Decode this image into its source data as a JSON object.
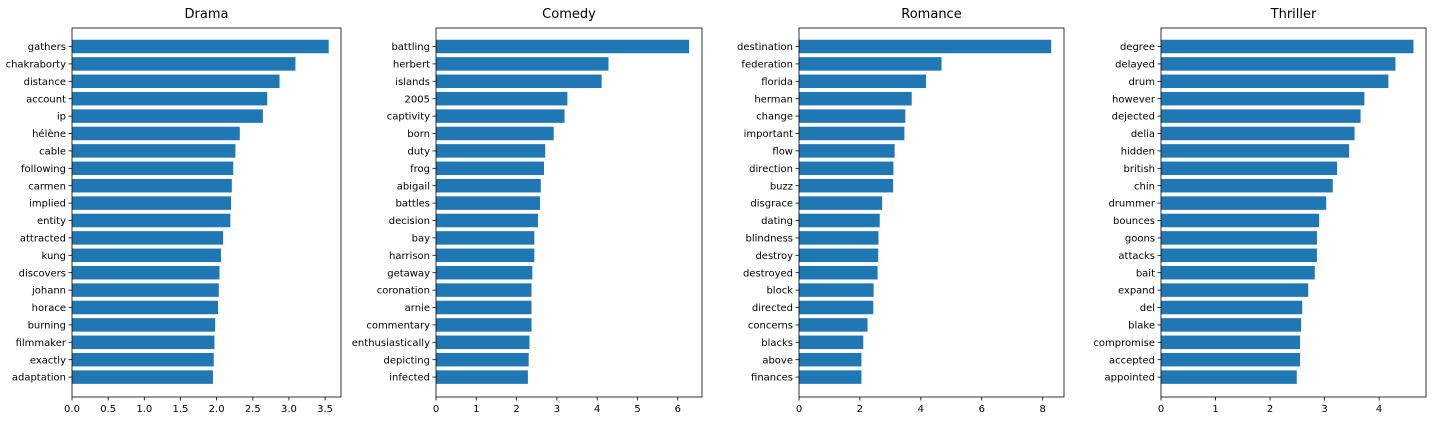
{
  "chart_data": [
    {
      "type": "bar",
      "orientation": "horizontal",
      "title": "Drama",
      "bar_color": "#1f77b4",
      "xlim": [
        0,
        3.72
      ],
      "xticks": [
        "0.0",
        "0.5",
        "1.0",
        "1.5",
        "2.0",
        "2.5",
        "3.0",
        "3.5"
      ],
      "categories": [
        "gathers",
        "chakraborty",
        "distance",
        "account",
        "ip",
        "hélène",
        "cable",
        "following",
        "carmen",
        "implied",
        "entity",
        "attracted",
        "kung",
        "discovers",
        "johann",
        "horace",
        "burning",
        "filmmaker",
        "exactly",
        "adaptation"
      ],
      "values": [
        3.55,
        3.09,
        2.87,
        2.7,
        2.64,
        2.32,
        2.26,
        2.23,
        2.21,
        2.2,
        2.19,
        2.09,
        2.06,
        2.04,
        2.03,
        2.02,
        1.98,
        1.97,
        1.96,
        1.95
      ]
    },
    {
      "type": "bar",
      "orientation": "horizontal",
      "title": "Comedy",
      "bar_color": "#1f77b4",
      "xlim": [
        0,
        6.6
      ],
      "xticks": [
        "0",
        "1",
        "2",
        "3",
        "4",
        "5",
        "6"
      ],
      "categories": [
        "battling",
        "herbert",
        "islands",
        "2005",
        "captivity",
        "born",
        "duty",
        "frog",
        "abigail",
        "battles",
        "decision",
        "bay",
        "harrison",
        "getaway",
        "coronation",
        "arnie",
        "commentary",
        "enthusiastically",
        "depicting",
        "infected"
      ],
      "values": [
        6.28,
        4.28,
        4.11,
        3.26,
        3.19,
        2.92,
        2.71,
        2.68,
        2.6,
        2.58,
        2.53,
        2.44,
        2.44,
        2.39,
        2.37,
        2.37,
        2.37,
        2.32,
        2.3,
        2.28
      ]
    },
    {
      "type": "bar",
      "orientation": "horizontal",
      "title": "Romance",
      "bar_color": "#1f77b4",
      "xlim": [
        0,
        8.7
      ],
      "xticks": [
        "0",
        "2",
        "4",
        "6",
        "8"
      ],
      "categories": [
        "destination",
        "federation",
        "florida",
        "herman",
        "change",
        "important",
        "flow",
        "direction",
        "buzz",
        "disgrace",
        "dating",
        "blindness",
        "destroy",
        "destroyed",
        "block",
        "directed",
        "concerns",
        "blacks",
        "above",
        "finances"
      ],
      "values": [
        8.28,
        4.68,
        4.17,
        3.7,
        3.49,
        3.46,
        3.14,
        3.1,
        3.09,
        2.73,
        2.65,
        2.61,
        2.6,
        2.58,
        2.45,
        2.44,
        2.25,
        2.11,
        2.05,
        2.05
      ]
    },
    {
      "type": "bar",
      "orientation": "horizontal",
      "title": "Thriller",
      "bar_color": "#1f77b4",
      "xlim": [
        0,
        4.86
      ],
      "xticks": [
        "0",
        "1",
        "2",
        "3",
        "4"
      ],
      "categories": [
        "degree",
        "delayed",
        "drum",
        "however",
        "dejected",
        "delia",
        "hidden",
        "british",
        "chin",
        "drummer",
        "bounces",
        "goons",
        "attacks",
        "bait",
        "expand",
        "del",
        "blake",
        "compromise",
        "accepted",
        "appointed"
      ],
      "values": [
        4.63,
        4.3,
        4.17,
        3.73,
        3.66,
        3.55,
        3.45,
        3.23,
        3.15,
        3.03,
        2.9,
        2.86,
        2.86,
        2.82,
        2.7,
        2.59,
        2.57,
        2.55,
        2.55,
        2.49
      ]
    }
  ]
}
